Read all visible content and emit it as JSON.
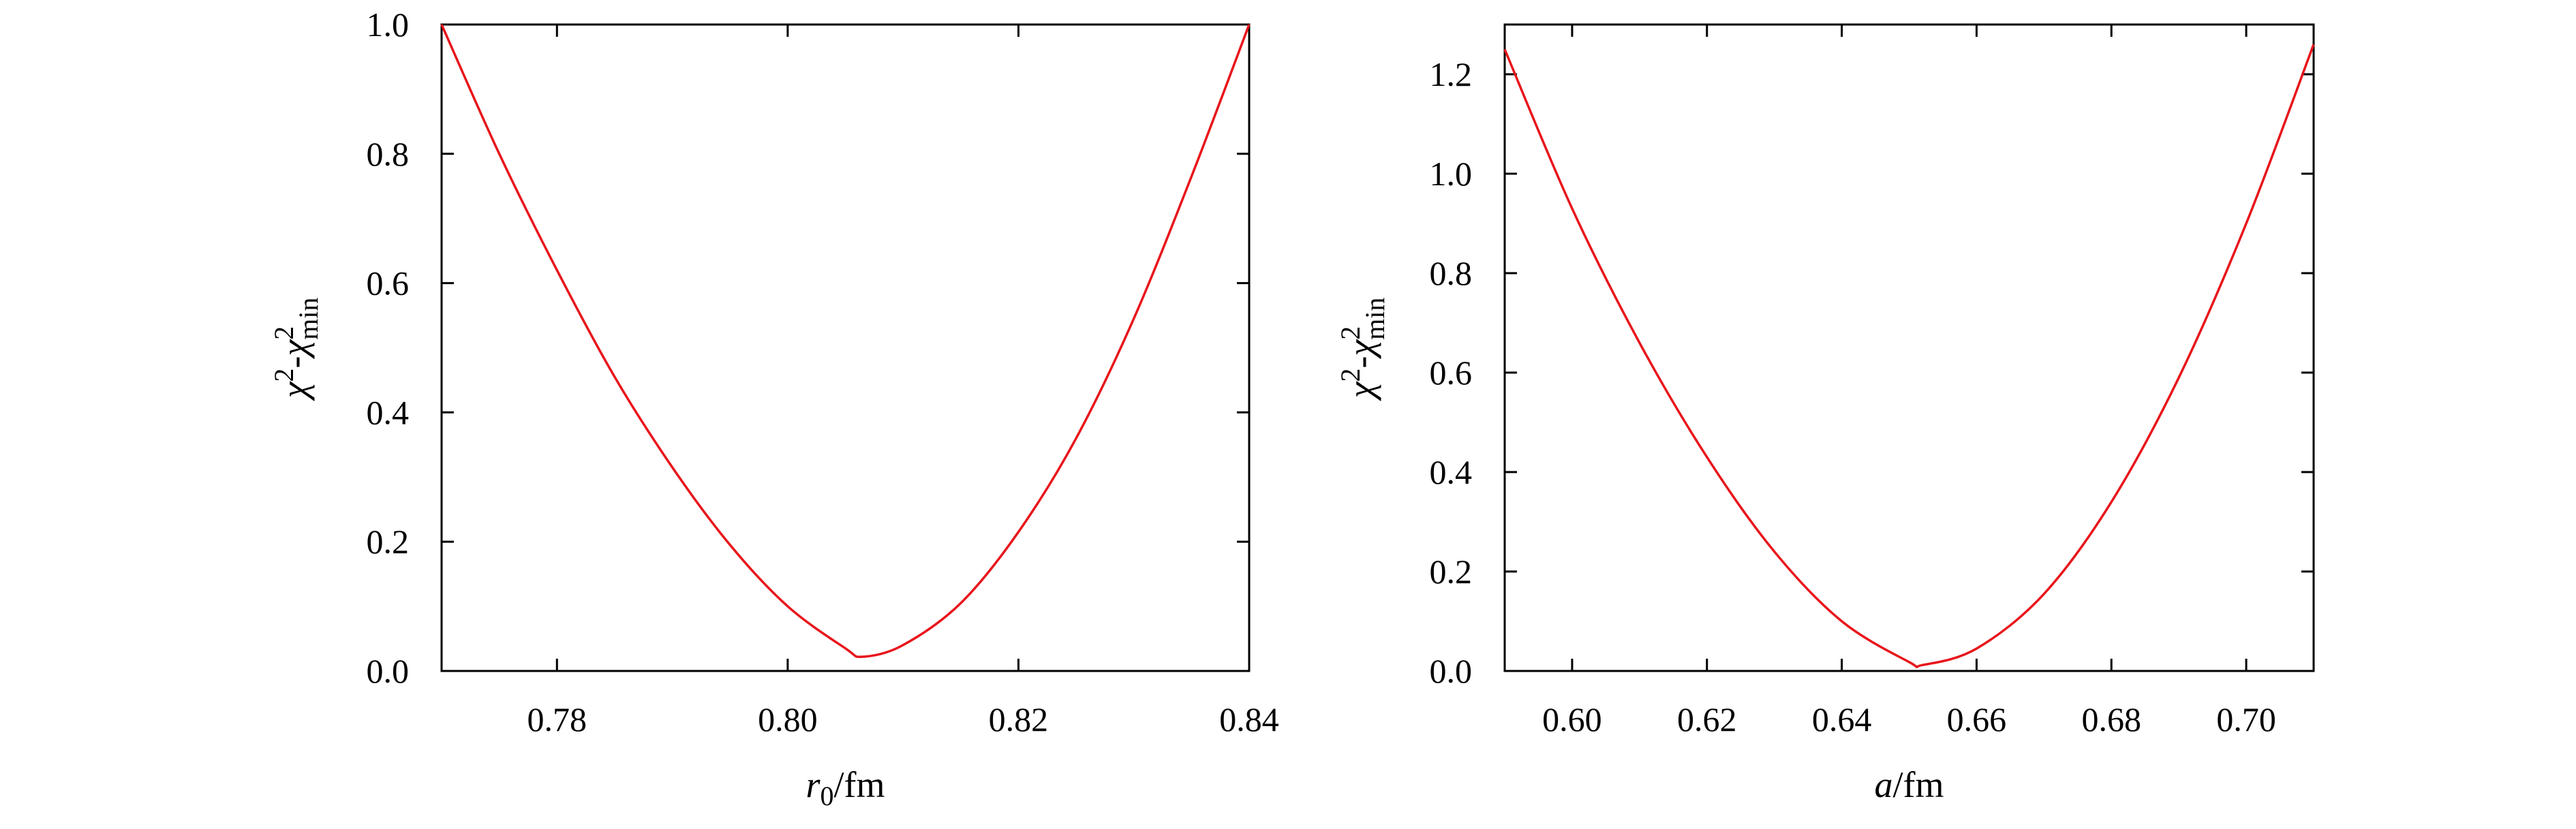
{
  "chart_data": [
    {
      "type": "line",
      "xlim": [
        0.77,
        0.84
      ],
      "ylim": [
        0,
        1
      ],
      "xticks": [
        0.78,
        0.8,
        0.82,
        0.84
      ],
      "xtick_labels": [
        "0.78",
        "0.80",
        "0.82",
        "0.84"
      ],
      "yticks": [
        0,
        0.2,
        0.4,
        0.6,
        0.8,
        1.0
      ],
      "ytick_labels": [
        "0.0",
        "0.2",
        "0.4",
        "0.6",
        "0.8",
        "1.0"
      ],
      "xlabel": {
        "var": "r",
        "sub": "0",
        "unit": "/fm"
      },
      "ylabel": {
        "a": "χ",
        "a_sup": "2",
        "dash": "-",
        "b": "χ",
        "b_sup": "2",
        "b_sub": "min"
      },
      "series": [
        {
          "color": "#e8151b",
          "x": [
            0.77,
            0.775,
            0.78,
            0.785,
            0.79,
            0.795,
            0.8,
            0.805,
            0.8065,
            0.81,
            0.815,
            0.82,
            0.825,
            0.83,
            0.835,
            0.84
          ],
          "y": [
            1.0,
            0.8,
            0.62,
            0.455,
            0.315,
            0.195,
            0.1,
            0.035,
            0.022,
            0.04,
            0.105,
            0.215,
            0.36,
            0.545,
            0.765,
            1.0
          ]
        }
      ],
      "grid": false,
      "legend": "none"
    },
    {
      "type": "line",
      "xlim": [
        0.59,
        0.71
      ],
      "ylim": [
        0,
        1.3
      ],
      "xticks": [
        0.6,
        0.62,
        0.64,
        0.66,
        0.68,
        0.7
      ],
      "xtick_labels": [
        "0.60",
        "0.62",
        "0.64",
        "0.66",
        "0.68",
        "0.70"
      ],
      "yticks": [
        0,
        0.2,
        0.4,
        0.6,
        0.8,
        1.0,
        1.2
      ],
      "ytick_labels": [
        "0.0",
        "0.2",
        "0.4",
        "0.6",
        "0.8",
        "1.0",
        "1.2"
      ],
      "xlabel": {
        "var": "a",
        "sub": "",
        "unit": "/fm"
      },
      "ylabel": {
        "a": "χ",
        "a_sup": "2",
        "dash": "-",
        "b": "χ",
        "b_sup": "2",
        "b_sub": "min"
      },
      "series": [
        {
          "color": "#e8151b",
          "x": [
            0.59,
            0.6,
            0.61,
            0.62,
            0.63,
            0.64,
            0.65,
            0.652,
            0.66,
            0.67,
            0.68,
            0.69,
            0.7,
            0.71
          ],
          "y": [
            1.25,
            0.93,
            0.66,
            0.43,
            0.24,
            0.1,
            0.018,
            0.012,
            0.045,
            0.155,
            0.34,
            0.59,
            0.9,
            1.26
          ]
        }
      ],
      "grid": false,
      "legend": "none"
    }
  ]
}
